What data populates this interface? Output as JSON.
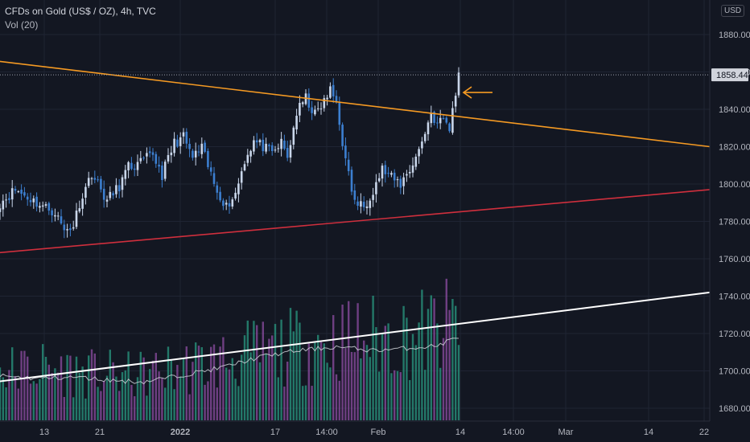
{
  "legend": {
    "title": "CFDs on Gold (US$ / OZ), 4h, TVC",
    "volume": "Vol (20)"
  },
  "currency": "USD",
  "colors": {
    "background": "#131722",
    "up": "#c9d6ea",
    "down": "#3c7fd0",
    "vol_up": "#2a9a82",
    "vol_down": "#8e4ea3",
    "resistance": "#f59a23",
    "support": "#cf2f3d",
    "long_trend": "#ffffff",
    "arrow": "#f59a23"
  },
  "chart_data": {
    "type": "candlestick",
    "title": "CFDs on Gold (US$ / OZ), 4h, TVC",
    "ylim": [
      1670,
      1890
    ],
    "y_ticks": [
      1680,
      1700,
      1720,
      1740,
      1760,
      1780,
      1800,
      1820,
      1840,
      1860,
      1880
    ],
    "x_ticks": [
      "13",
      "21",
      "2022",
      "17",
      "14:00",
      "Feb",
      "14",
      "14:00",
      "Mar",
      "14",
      "22"
    ],
    "last_price": "1858.44",
    "close_anchors": [
      [
        0,
        1790
      ],
      [
        5,
        1797
      ],
      [
        10,
        1792
      ],
      [
        14,
        1788
      ],
      [
        18,
        1785
      ],
      [
        21,
        1775
      ],
      [
        24,
        1778
      ],
      [
        26,
        1790
      ],
      [
        30,
        1806
      ],
      [
        33,
        1797
      ],
      [
        35,
        1791
      ],
      [
        39,
        1799
      ],
      [
        42,
        1809
      ],
      [
        45,
        1810
      ],
      [
        50,
        1816
      ],
      [
        53,
        1805
      ],
      [
        57,
        1822
      ],
      [
        60,
        1825
      ],
      [
        63,
        1814
      ],
      [
        66,
        1819
      ],
      [
        70,
        1800
      ],
      [
        74,
        1788
      ],
      [
        77,
        1795
      ],
      [
        80,
        1813
      ],
      [
        83,
        1823
      ],
      [
        86,
        1820
      ],
      [
        89,
        1816
      ],
      [
        92,
        1822
      ],
      [
        94,
        1814
      ],
      [
        97,
        1838
      ],
      [
        100,
        1846
      ],
      [
        103,
        1837
      ],
      [
        106,
        1844
      ],
      [
        108,
        1850
      ],
      [
        110,
        1844
      ],
      [
        113,
        1812
      ],
      [
        116,
        1790
      ],
      [
        119,
        1788
      ],
      [
        122,
        1797
      ],
      [
        125,
        1808
      ],
      [
        128,
        1803
      ],
      [
        131,
        1800
      ],
      [
        134,
        1808
      ],
      [
        137,
        1818
      ],
      [
        139,
        1828
      ],
      [
        141,
        1838
      ],
      [
        143,
        1832
      ],
      [
        145,
        1835
      ],
      [
        147,
        1830
      ],
      [
        149,
        1848
      ],
      [
        150,
        1862
      ]
    ],
    "volume_anchors": [
      [
        0,
        42
      ],
      [
        15,
        45
      ],
      [
        30,
        40
      ],
      [
        44,
        38
      ],
      [
        56,
        44
      ],
      [
        70,
        50
      ],
      [
        85,
        58
      ],
      [
        100,
        65
      ],
      [
        115,
        70
      ],
      [
        130,
        72
      ],
      [
        145,
        78
      ],
      [
        150,
        85
      ]
    ],
    "volume_ma_anchors": [
      [
        0,
        38
      ],
      [
        12,
        36
      ],
      [
        25,
        37
      ],
      [
        38,
        34
      ],
      [
        47,
        33
      ],
      [
        58,
        38
      ],
      [
        72,
        45
      ],
      [
        86,
        55
      ],
      [
        98,
        60
      ],
      [
        110,
        63
      ],
      [
        122,
        60
      ],
      [
        134,
        62
      ],
      [
        143,
        64
      ],
      [
        150,
        72
      ]
    ],
    "lines": [
      {
        "name": "descending-trendline",
        "from": [
          -2,
          1866
        ],
        "to": [
          220,
          1820
        ],
        "color": "resistance"
      },
      {
        "name": "ascending-support",
        "from": [
          -2,
          1763
        ],
        "to": [
          220,
          1797
        ],
        "color": "support"
      },
      {
        "name": "long-term-trendline",
        "from": [
          -2,
          1694
        ],
        "to": [
          220,
          1742
        ],
        "color": "long_trend"
      }
    ],
    "annotations": [
      {
        "type": "arrow",
        "at": [
          150,
          1849
        ],
        "direction": "left"
      }
    ]
  }
}
